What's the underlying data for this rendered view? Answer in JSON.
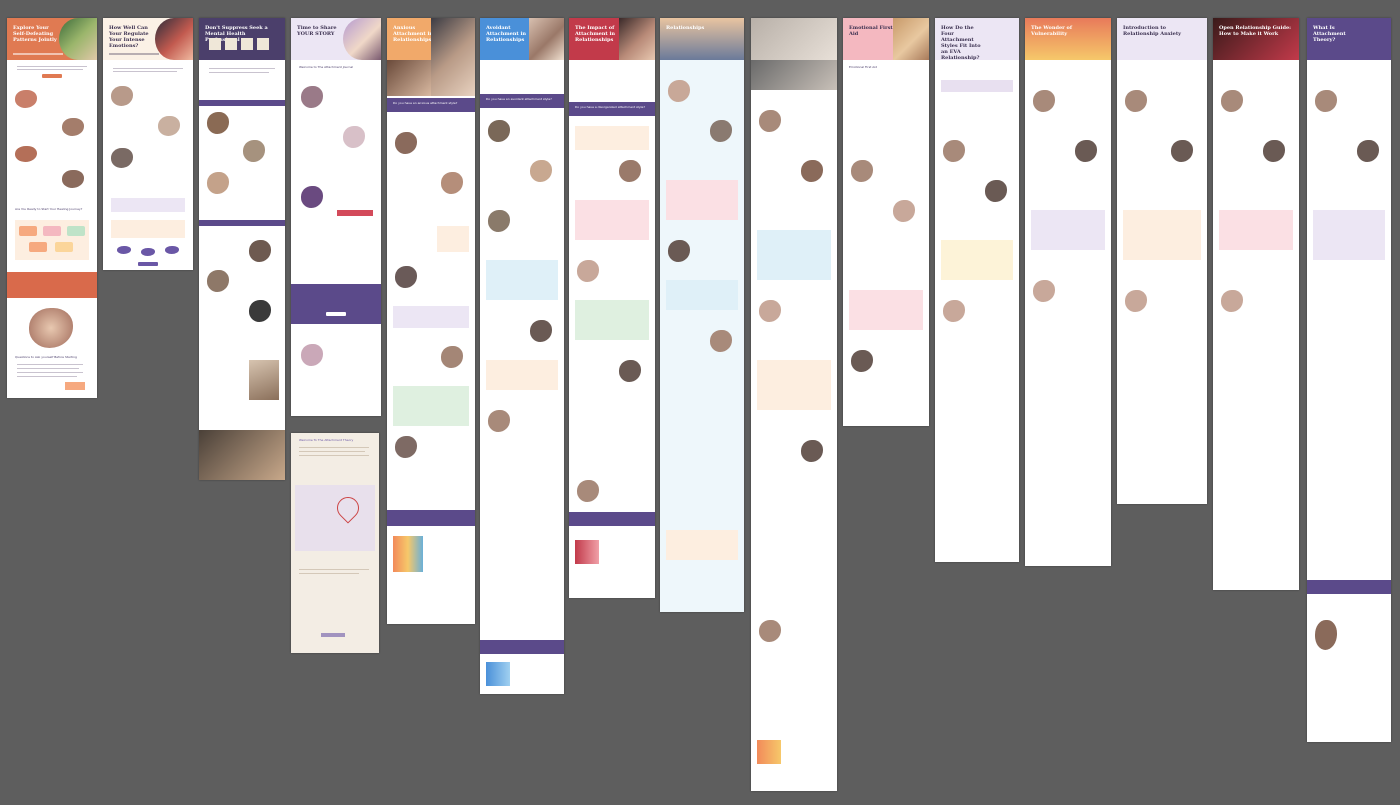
{
  "canvas": {
    "background": "#5e5e5e",
    "description_label": "Figma board of email/landing page mockups"
  },
  "accent_colors": {
    "purple": "#5b4a8a",
    "orange": "#e07a52",
    "pink": "#f4b8c0",
    "lavender": "#ece6f4",
    "peach": "#fdeee0",
    "sky": "#dff0f8"
  },
  "pages": [
    {
      "title": "Explore Your Self-Defeating Patterns Jointly",
      "theme": "orange"
    },
    {
      "title": "How Well Can Your Regulate Your Intense Emotions?",
      "theme": "cream"
    },
    {
      "title": "Don't Suppress Seek a Mental Health Professional",
      "theme": "purple"
    },
    {
      "title": "Time to Share YOUR STORY",
      "theme": "lavender"
    },
    {
      "title": "Anxious Attachment in Relationships",
      "theme": "orange"
    },
    {
      "title": "Avoidant Attachment in Relationships",
      "theme": "blue"
    },
    {
      "title": "The Impact of Attachment in Relationships",
      "theme": "red"
    },
    {
      "title": "Relationships",
      "theme": "sky"
    },
    {
      "title": "",
      "theme": "grey"
    },
    {
      "title": "Emotional First Aid",
      "theme": "pink"
    },
    {
      "title": "How Do the Four Attachment Styles Fit Into an EVA Relationship?",
      "theme": "lavender"
    },
    {
      "title": "The Wonder of Vulnerability",
      "theme": "sunset"
    },
    {
      "title": "Introduction to Relationship Anxiety",
      "theme": "lavender"
    },
    {
      "title": "Open Relationship Guide: How to Make it Work",
      "theme": "red"
    },
    {
      "title": "What Is Attachment Theory?",
      "theme": "purple"
    },
    {
      "title": "Welcome To The Attachment Theory",
      "theme": "beige"
    }
  ],
  "snippets": {
    "p1_cta": "Are You Ready to Start Your Healing Journey?",
    "p1_bottom": "Questions to Ask yourself Before Starting",
    "p4_heading": "Welcome to The Attachment Journal",
    "p5_cta": "Do you have an anxious attachment style?",
    "p6_cta": "Do you have an avoidant attachment style?",
    "p7_cta": "Do you have a disorganized attachment style?",
    "p10_heading": "Emotional First Aid"
  }
}
